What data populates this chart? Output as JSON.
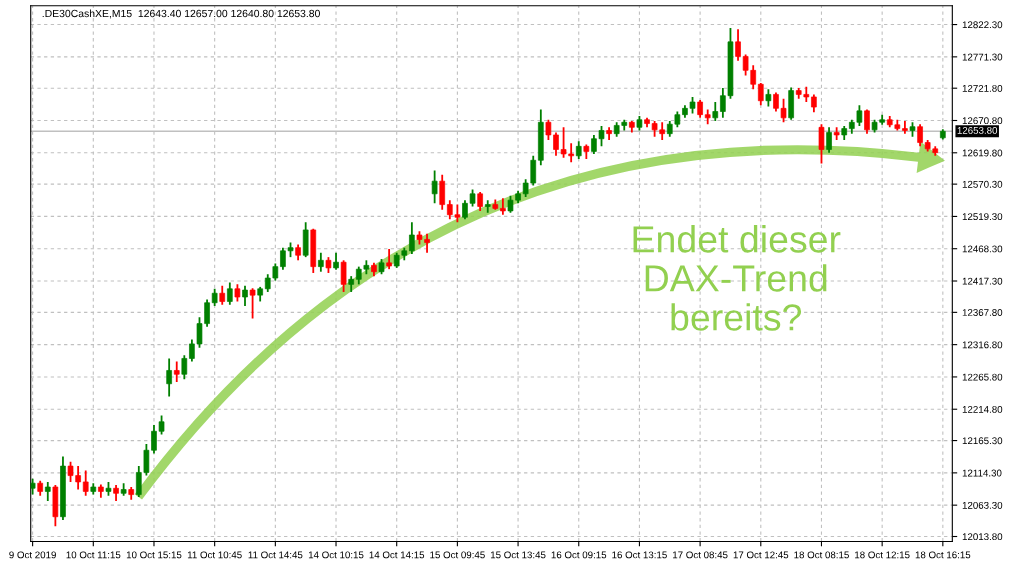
{
  "chart_data": {
    "type": "candlestick",
    "title": ".DE30CashXE,M15  12643.40 12657.00 12640.80 12653.80",
    "annotations": [
      "Endet dieser\nDAX-Trend\nbereits?"
    ],
    "ohlc": [
      [
        12090,
        12105,
        12080,
        12098
      ],
      [
        12098,
        12102,
        12078,
        12085
      ],
      [
        12085,
        12100,
        12070,
        12092
      ],
      [
        12092,
        12095,
        12030,
        12045
      ],
      [
        12045,
        12140,
        12040,
        12125
      ],
      [
        12125,
        12132,
        12100,
        12110
      ],
      [
        12110,
        12125,
        12088,
        12100
      ],
      [
        12100,
        12118,
        12078,
        12085
      ],
      [
        12085,
        12098,
        12080,
        12092
      ],
      [
        12092,
        12096,
        12075,
        12085
      ],
      [
        12085,
        12100,
        12078,
        12090
      ],
      [
        12090,
        12095,
        12070,
        12082
      ],
      [
        12082,
        12098,
        12078,
        12088
      ],
      [
        12088,
        12092,
        12072,
        12080
      ],
      [
        12080,
        12125,
        12076,
        12115
      ],
      [
        12115,
        12160,
        12110,
        12150
      ],
      [
        12150,
        12190,
        12145,
        12180
      ],
      [
        12180,
        12205,
        12175,
        12195
      ],
      [
        12255,
        12295,
        12235,
        12276
      ],
      [
        12276,
        12290,
        12258,
        12270
      ],
      [
        12270,
        12300,
        12262,
        12295
      ],
      [
        12295,
        12325,
        12290,
        12318
      ],
      [
        12318,
        12360,
        12312,
        12350
      ],
      [
        12350,
        12388,
        12345,
        12383
      ],
      [
        12383,
        12405,
        12378,
        12398
      ],
      [
        12398,
        12410,
        12380,
        12385
      ],
      [
        12385,
        12415,
        12380,
        12405
      ],
      [
        12405,
        12412,
        12385,
        12392
      ],
      [
        12392,
        12410,
        12378,
        12403
      ],
      [
        12403,
        12406,
        12358,
        12395
      ],
      [
        12395,
        12408,
        12385,
        12405
      ],
      [
        12405,
        12428,
        12400,
        12422
      ],
      [
        12422,
        12445,
        12418,
        12440
      ],
      [
        12440,
        12470,
        12435,
        12465
      ],
      [
        12465,
        12478,
        12455,
        12470
      ],
      [
        12470,
        12475,
        12450,
        12458
      ],
      [
        12458,
        12510,
        12455,
        12498
      ],
      [
        12498,
        12500,
        12430,
        12440
      ],
      [
        12440,
        12462,
        12432,
        12450
      ],
      [
        12450,
        12455,
        12430,
        12438
      ],
      [
        12438,
        12462,
        12435,
        12447
      ],
      [
        12447,
        12450,
        12400,
        12412
      ],
      [
        12412,
        12425,
        12400,
        12420
      ],
      [
        12420,
        12440,
        12412,
        12436
      ],
      [
        12436,
        12450,
        12428,
        12442
      ],
      [
        12442,
        12446,
        12425,
        12432
      ],
      [
        12432,
        12452,
        12428,
        12446
      ],
      [
        12446,
        12468,
        12436,
        12441
      ],
      [
        12441,
        12462,
        12438,
        12458
      ],
      [
        12458,
        12470,
        12450,
        12465
      ],
      [
        12465,
        12510,
        12460,
        12490
      ],
      [
        12490,
        12496,
        12475,
        12483
      ],
      [
        12483,
        12492,
        12462,
        12478
      ],
      [
        12555,
        12592,
        12540,
        12575
      ],
      [
        12575,
        12585,
        12530,
        12538
      ],
      [
        12538,
        12545,
        12515,
        12522
      ],
      [
        12522,
        12538,
        12510,
        12518
      ],
      [
        12518,
        12545,
        12515,
        12540
      ],
      [
        12540,
        12562,
        12535,
        12555
      ],
      [
        12555,
        12558,
        12528,
        12535
      ],
      [
        12535,
        12545,
        12525,
        12538
      ],
      [
        12538,
        12546,
        12530,
        12532
      ],
      [
        12532,
        12548,
        12522,
        12528
      ],
      [
        12528,
        12552,
        12525,
        12545
      ],
      [
        12545,
        12560,
        12540,
        12555
      ],
      [
        12555,
        12578,
        12550,
        12572
      ],
      [
        12572,
        12615,
        12568,
        12608
      ],
      [
        12608,
        12688,
        12600,
        12668
      ],
      [
        12668,
        12672,
        12640,
        12648
      ],
      [
        12648,
        12652,
        12615,
        12625
      ],
      [
        12625,
        12660,
        12612,
        12618
      ],
      [
        12618,
        12635,
        12605,
        12615
      ],
      [
        12615,
        12638,
        12610,
        12630
      ],
      [
        12630,
        12633,
        12610,
        12622
      ],
      [
        12622,
        12648,
        12618,
        12642
      ],
      [
        12642,
        12662,
        12630,
        12655
      ],
      [
        12655,
        12660,
        12640,
        12650
      ],
      [
        12650,
        12668,
        12645,
        12663
      ],
      [
        12663,
        12672,
        12655,
        12668
      ],
      [
        12668,
        12670,
        12652,
        12660
      ],
      [
        12660,
        12678,
        12655,
        12672
      ],
      [
        12672,
        12675,
        12660,
        12666
      ],
      [
        12666,
        12670,
        12645,
        12656
      ],
      [
        12656,
        12668,
        12640,
        12650
      ],
      [
        12650,
        12670,
        12645,
        12665
      ],
      [
        12665,
        12685,
        12660,
        12680
      ],
      [
        12680,
        12695,
        12675,
        12690
      ],
      [
        12690,
        12708,
        12682,
        12700
      ],
      [
        12700,
        12703,
        12675,
        12680
      ],
      [
        12680,
        12688,
        12665,
        12675
      ],
      [
        12675,
        12700,
        12670,
        12685
      ],
      [
        12685,
        12722,
        12675,
        12710
      ],
      [
        12710,
        12817,
        12705,
        12795
      ],
      [
        12795,
        12815,
        12765,
        12772
      ],
      [
        12772,
        12775,
        12742,
        12750
      ],
      [
        12750,
        12758,
        12720,
        12728
      ],
      [
        12728,
        12730,
        12695,
        12702
      ],
      [
        12702,
        12720,
        12693,
        12712
      ],
      [
        12712,
        12715,
        12685,
        12690
      ],
      [
        12690,
        12705,
        12668,
        12675
      ],
      [
        12675,
        12723,
        12672,
        12718
      ],
      [
        12718,
        12722,
        12705,
        12712
      ],
      [
        12712,
        12724,
        12700,
        12708
      ],
      [
        12708,
        12712,
        12684,
        12692
      ],
      [
        12660,
        12665,
        12603,
        12625
      ],
      [
        12625,
        12660,
        12620,
        12652
      ],
      [
        12652,
        12660,
        12640,
        12648
      ],
      [
        12648,
        12662,
        12640,
        12658
      ],
      [
        12658,
        12672,
        12650,
        12668
      ],
      [
        12668,
        12695,
        12662,
        12686
      ],
      [
        12686,
        12688,
        12650,
        12656
      ],
      [
        12656,
        12672,
        12652,
        12668
      ],
      [
        12668,
        12680,
        12664,
        12672
      ],
      [
        12672,
        12678,
        12660,
        12664
      ],
      [
        12664,
        12672,
        12655,
        12658
      ],
      [
        12658,
        12670,
        12650,
        12655
      ],
      [
        12655,
        12668,
        12645,
        12661
      ],
      [
        12661,
        12665,
        12630,
        12636
      ],
      [
        12636,
        12640,
        12622,
        12626
      ],
      [
        12626,
        12630,
        12615,
        12620
      ],
      [
        12643.4,
        12657,
        12640.8,
        12653.8
      ]
    ],
    "colors": [
      "#008000",
      "#ff0000",
      "#008000",
      "#ff0000",
      "#008000",
      "#ff0000",
      "#ff0000",
      "#ff0000",
      "#008000",
      "#ff0000",
      "#008000",
      "#ff0000",
      "#008000",
      "#ff0000",
      "#008000",
      "#008000",
      "#008000",
      "#008000",
      "#008000",
      "#ff0000",
      "#008000",
      "#008000",
      "#008000",
      "#008000",
      "#008000",
      "#ff0000",
      "#008000",
      "#ff0000",
      "#008000",
      "#ff0000",
      "#008000",
      "#008000",
      "#008000",
      "#008000",
      "#008000",
      "#ff0000",
      "#008000",
      "#ff0000",
      "#008000",
      "#ff0000",
      "#008000",
      "#ff0000",
      "#008000",
      "#008000",
      "#008000",
      "#ff0000",
      "#008000",
      "#ff0000",
      "#008000",
      "#008000",
      "#008000",
      "#ff0000",
      "#ff0000",
      "#008000",
      "#ff0000",
      "#ff0000",
      "#ff0000",
      "#008000",
      "#008000",
      "#ff0000",
      "#008000",
      "#ff0000",
      "#ff0000",
      "#008000",
      "#008000",
      "#008000",
      "#008000",
      "#008000",
      "#ff0000",
      "#ff0000",
      "#ff0000",
      "#ff0000",
      "#008000",
      "#ff0000",
      "#008000",
      "#008000",
      "#ff0000",
      "#008000",
      "#008000",
      "#ff0000",
      "#008000",
      "#ff0000",
      "#ff0000",
      "#ff0000",
      "#008000",
      "#008000",
      "#008000",
      "#008000",
      "#ff0000",
      "#ff0000",
      "#008000",
      "#008000",
      "#008000",
      "#ff0000",
      "#ff0000",
      "#ff0000",
      "#ff0000",
      "#008000",
      "#ff0000",
      "#ff0000",
      "#008000",
      "#ff0000",
      "#ff0000",
      "#ff0000",
      "#ff0000",
      "#008000",
      "#ff0000",
      "#008000",
      "#008000",
      "#008000",
      "#ff0000",
      "#008000",
      "#008000",
      "#ff0000",
      "#ff0000",
      "#ff0000",
      "#008000",
      "#ff0000",
      "#ff0000",
      "#ff0000",
      "#008000"
    ],
    "categories": [
      "9 Oct 2019",
      null,
      null,
      null,
      null,
      null,
      null,
      null,
      "10 Oct 11:15",
      null,
      null,
      null,
      null,
      null,
      null,
      null,
      "10 Oct 15:15",
      null,
      null,
      null,
      null,
      null,
      null,
      null,
      "11 Oct 10:45",
      null,
      null,
      null,
      null,
      null,
      null,
      null,
      "11 Oct 14:45",
      null,
      null,
      null,
      null,
      null,
      null,
      null,
      "14 Oct 10:15",
      null,
      null,
      null,
      null,
      null,
      null,
      null,
      "14 Oct 14:15",
      null,
      null,
      null,
      null,
      null,
      null,
      null,
      "15 Oct 09:45",
      null,
      null,
      null,
      null,
      null,
      null,
      null,
      "15 Oct 13:45",
      null,
      null,
      null,
      null,
      null,
      null,
      null,
      "16 Oct 09:15",
      null,
      null,
      null,
      null,
      null,
      null,
      null,
      "16 Oct 13:15",
      null,
      null,
      null,
      null,
      null,
      null,
      null,
      "17 Oct 08:45",
      null,
      null,
      null,
      null,
      null,
      null,
      null,
      "17 Oct 12:45",
      null,
      null,
      null,
      null,
      null,
      null,
      null,
      "18 Oct 08:15",
      null,
      null,
      null,
      null,
      null,
      null,
      null,
      "18 Oct 12:15",
      null,
      null,
      null,
      null,
      null,
      null,
      null,
      "18 Oct 16:15"
    ],
    "ylim": [
      12006,
      12852
    ],
    "yticks": [
      {
        "value": 12013.8,
        "label": "12013.80"
      },
      {
        "value": 12063.3,
        "label": "12063.30"
      },
      {
        "value": 12114.3,
        "label": "12114.30"
      },
      {
        "value": 12165.3,
        "label": "12165.30"
      },
      {
        "value": 12214.8,
        "label": "12214.80"
      },
      {
        "value": 12265.8,
        "label": "12265.80"
      },
      {
        "value": 12316.8,
        "label": "12316.80"
      },
      {
        "value": 12367.8,
        "label": "12367.80"
      },
      {
        "value": 12417.3,
        "label": "12417.30"
      },
      {
        "value": 12468.3,
        "label": "12468.30"
      },
      {
        "value": 12519.3,
        "label": "12519.30"
      },
      {
        "value": 12570.3,
        "label": "12570.30"
      },
      {
        "value": 12619.8,
        "label": "12619.80"
      },
      {
        "value": 12670.8,
        "label": "12670.80"
      },
      {
        "value": 12721.8,
        "label": "12721.80"
      },
      {
        "value": 12771.3,
        "label": "12771.30"
      },
      {
        "value": 12822.3,
        "label": "12822.30"
      }
    ],
    "ref_lines": [
      {
        "axis": "y",
        "value": 12653.8,
        "label": "12653.80",
        "color": "#c0c0c0"
      }
    ],
    "grid": true,
    "legend": false
  }
}
